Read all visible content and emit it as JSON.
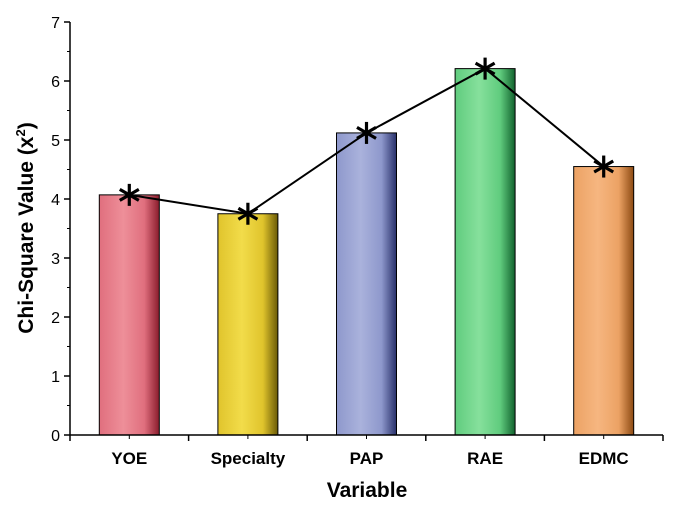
{
  "chart_data": {
    "type": "bar",
    "title": "",
    "xlabel": "Variable",
    "ylabel": "Chi-Square Value (x",
    "ylabel_sup": "2",
    "ylabel_close": ")",
    "categories": [
      "YOE",
      "Specialty",
      "PAP",
      "RAE",
      "EDMC"
    ],
    "values": [
      4.07,
      3.75,
      5.12,
      6.21,
      4.55
    ],
    "line_overlay": {
      "marker": "asterisk",
      "values": [
        4.07,
        3.75,
        5.12,
        6.21,
        4.55
      ]
    },
    "ylim": [
      0,
      7
    ],
    "yticks": [
      "0",
      "1",
      "2",
      "3",
      "4",
      "5",
      "6",
      "7"
    ],
    "colors": [
      {
        "light": "#ee8f99",
        "mid": "#e06f7e",
        "dark": "#8a1c2c"
      },
      {
        "light": "#f2dc4a",
        "mid": "#e0c42c",
        "dark": "#6a5a06"
      },
      {
        "light": "#aab2dc",
        "mid": "#8e98cc",
        "dark": "#28306a"
      },
      {
        "light": "#86e09c",
        "mid": "#60cc7e",
        "dark": "#12622e"
      },
      {
        "light": "#f6b680",
        "mid": "#eca264",
        "dark": "#8c4a12"
      }
    ],
    "grid": false,
    "legend": "none"
  }
}
